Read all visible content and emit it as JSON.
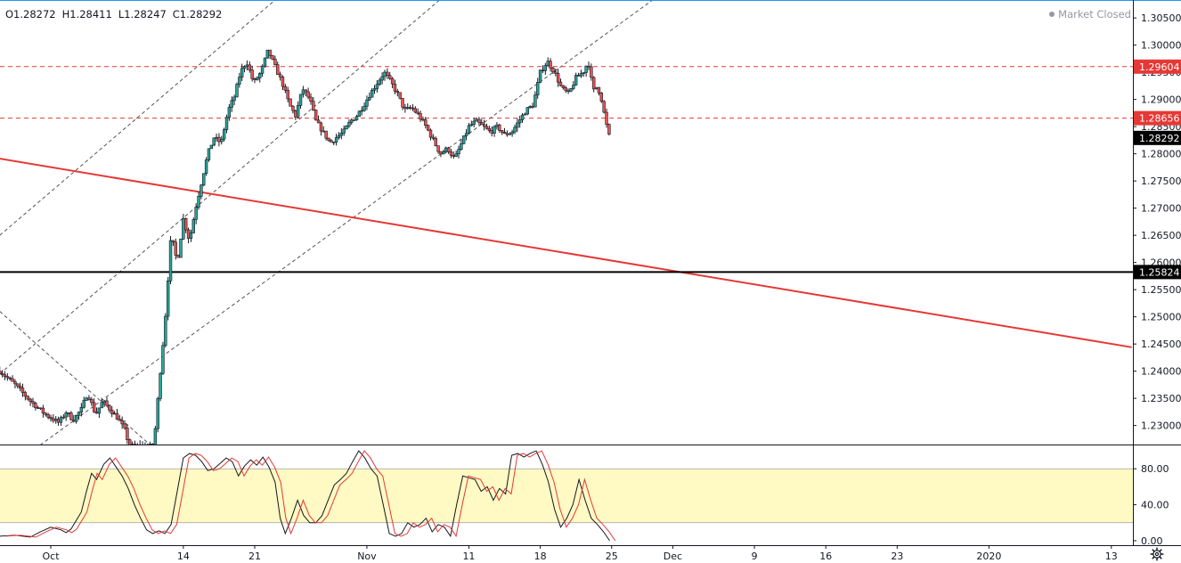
{
  "header": {
    "open": "O1.28272",
    "high": "H1.28411",
    "low": "L1.28247",
    "close": "C1.28292",
    "status": "Market Closed"
  },
  "colors": {
    "up": "#26a69a",
    "down": "#ef5350",
    "candle_border": "#131722",
    "trendline": "#e53935",
    "support": "#000000",
    "dashed_level": "#e53935",
    "channel": "#555555",
    "stoch_band": "#fff9c4",
    "stoch_k": "#131722",
    "stoch_d": "#e53935",
    "axis_text": "#131722"
  },
  "icons": {
    "settings": "gear-icon"
  },
  "chart_data": [
    {
      "type": "candlestick",
      "pane": "price",
      "ylim": [
        1.2265,
        1.3083
      ],
      "y_ticks": [
        "1.30500",
        "1.30000",
        "1.29500",
        "1.29000",
        "1.28500",
        "1.28000",
        "1.27500",
        "1.27000",
        "1.26500",
        "1.26000",
        "1.25500",
        "1.25000",
        "1.24500",
        "1.24000",
        "1.23500",
        "1.23000"
      ],
      "x_ticks": [
        {
          "label": "Oct",
          "day": 0
        },
        {
          "label": "14",
          "day": 13
        },
        {
          "label": "21",
          "day": 20
        },
        {
          "label": "Nov",
          "day": 31
        },
        {
          "label": "11",
          "day": 41
        },
        {
          "label": "18",
          "day": 48
        },
        {
          "label": "25",
          "day": 55
        },
        {
          "label": "Dec",
          "day": 61
        },
        {
          "label": "9",
          "day": 69
        },
        {
          "label": "16",
          "day": 76
        },
        {
          "label": "23",
          "day": 83
        },
        {
          "label": "2020",
          "day": 92
        },
        {
          "label": "13",
          "day": 104
        }
      ],
      "path_points": [
        [
          -5,
          1.24
        ],
        [
          -3.5,
          1.2375
        ],
        [
          -2,
          1.2345
        ],
        [
          -0.5,
          1.232
        ],
        [
          0.8,
          1.2305
        ],
        [
          1.5,
          1.2325
        ],
        [
          2.2,
          1.231
        ],
        [
          3,
          1.233
        ],
        [
          3.6,
          1.236
        ],
        [
          4.4,
          1.232
        ],
        [
          5.1,
          1.2345
        ],
        [
          5.8,
          1.233
        ],
        [
          6.5,
          1.2315
        ],
        [
          7.3,
          1.229
        ],
        [
          7.7,
          1.2262
        ],
        [
          10.1,
          1.2262
        ],
        [
          10.7,
          1.239
        ],
        [
          11.2,
          1.249
        ],
        [
          11.8,
          1.265
        ],
        [
          12.4,
          1.26
        ],
        [
          13,
          1.268
        ],
        [
          13.6,
          1.264
        ],
        [
          14.2,
          1.27
        ],
        [
          14.8,
          1.275
        ],
        [
          15.4,
          1.28
        ],
        [
          16,
          1.283
        ],
        [
          16.7,
          1.282
        ],
        [
          17.4,
          1.288
        ],
        [
          18,
          1.2905
        ],
        [
          18.6,
          1.295
        ],
        [
          19.2,
          1.297
        ],
        [
          19.9,
          1.293
        ],
        [
          20.6,
          1.295
        ],
        [
          21.3,
          1.299
        ],
        [
          22,
          1.296
        ],
        [
          22.7,
          1.293
        ],
        [
          23.4,
          1.289
        ],
        [
          24,
          1.287
        ],
        [
          24.7,
          1.292
        ],
        [
          25.4,
          1.29
        ],
        [
          26,
          1.286
        ],
        [
          26.7,
          1.284
        ],
        [
          27.4,
          1.282
        ],
        [
          28,
          1.283
        ],
        [
          28.7,
          1.284
        ],
        [
          29.4,
          1.286
        ],
        [
          30,
          1.287
        ],
        [
          30.7,
          1.289
        ],
        [
          31.3,
          1.291
        ],
        [
          32,
          1.293
        ],
        [
          32.7,
          1.295
        ],
        [
          33.4,
          1.293
        ],
        [
          34,
          1.291
        ],
        [
          34.7,
          1.288
        ],
        [
          35.4,
          1.2885
        ],
        [
          36.1,
          1.287
        ],
        [
          36.8,
          1.285
        ],
        [
          37.5,
          1.2825
        ],
        [
          38.2,
          1.28
        ],
        [
          38.9,
          1.281
        ],
        [
          39.6,
          1.279
        ],
        [
          40.3,
          1.282
        ],
        [
          41,
          1.285
        ],
        [
          41.7,
          1.286
        ],
        [
          42.4,
          1.285
        ],
        [
          43.1,
          1.284
        ],
        [
          43.8,
          1.285
        ],
        [
          44.5,
          1.2835
        ],
        [
          45.2,
          1.284
        ],
        [
          45.9,
          1.286
        ],
        [
          46.6,
          1.288
        ],
        [
          47.3,
          1.289
        ],
        [
          48,
          1.295
        ],
        [
          48.7,
          1.297
        ],
        [
          49.4,
          1.295
        ],
        [
          50.1,
          1.292
        ],
        [
          50.8,
          1.291
        ],
        [
          51.5,
          1.294
        ],
        [
          52.2,
          1.295
        ],
        [
          52.7,
          1.297
        ],
        [
          53.2,
          1.2915
        ],
        [
          53.6,
          1.2925
        ],
        [
          54,
          1.29
        ],
        [
          54.4,
          1.286
        ],
        [
          54.8,
          1.2829
        ]
      ],
      "levels": [
        {
          "price": 1.29604,
          "label": "1.29604",
          "style": "dashed",
          "color": "#e53935"
        },
        {
          "price": 1.28656,
          "label": "1.28656",
          "style": "dashed",
          "color": "#e53935"
        },
        {
          "price": 1.25824,
          "label": "1.25824",
          "style": "solid",
          "color": "#000000"
        }
      ],
      "last_price": {
        "price": 1.28292,
        "label": "1.28292"
      },
      "trendline": {
        "from": [
          -5,
          1.2791
        ],
        "to": [
          106,
          1.2444
        ],
        "color": "#e53935"
      },
      "channel_lines": [
        {
          "from": [
            -5,
            1.265
          ],
          "to": [
            48,
            1.35
          ]
        },
        {
          "from": [
            -5,
            1.2395
          ],
          "to": [
            58,
            1.34
          ]
        },
        {
          "from": [
            -5,
            1.221
          ],
          "to": [
            72,
            1.326
          ]
        },
        {
          "from": [
            -5,
            1.251
          ],
          "to": [
            10,
            1.226
          ]
        }
      ]
    },
    {
      "type": "line",
      "pane": "stochastic",
      "ylim": [
        -5,
        107
      ],
      "y_ticks": [
        "80.00",
        "40.00",
        "0.00"
      ],
      "band": [
        20,
        80
      ],
      "series": [
        {
          "points": [
            [
              -5,
              5
            ],
            [
              -3.5,
              6
            ],
            [
              -2,
              4
            ],
            [
              -1,
              10
            ],
            [
              0,
              15
            ],
            [
              1,
              12
            ],
            [
              1.5,
              9
            ],
            [
              2,
              13
            ],
            [
              3,
              32
            ],
            [
              3.5,
              55
            ],
            [
              4,
              75
            ],
            [
              4.5,
              68
            ],
            [
              5.2,
              85
            ],
            [
              5.8,
              92
            ],
            [
              6.4,
              82
            ],
            [
              7,
              72
            ],
            [
              7.6,
              58
            ],
            [
              8.2,
              40
            ],
            [
              8.8,
              25
            ],
            [
              9.4,
              12
            ],
            [
              10,
              8
            ],
            [
              10.6,
              11
            ],
            [
              11.2,
              8
            ],
            [
              11.8,
              18
            ],
            [
              12.4,
              55
            ],
            [
              13,
              92
            ],
            [
              13.6,
              97
            ],
            [
              14.2,
              95
            ],
            [
              14.8,
              88
            ],
            [
              15.4,
              78
            ],
            [
              16,
              80
            ],
            [
              16.6,
              86
            ],
            [
              17.2,
              92
            ],
            [
              17.8,
              88
            ],
            [
              18.4,
              72
            ],
            [
              19,
              83
            ],
            [
              19.6,
              90
            ],
            [
              20.2,
              84
            ],
            [
              20.8,
              93
            ],
            [
              21.4,
              82
            ],
            [
              22,
              65
            ],
            [
              22.5,
              25
            ],
            [
              23,
              8
            ],
            [
              23.6,
              25
            ],
            [
              24.2,
              45
            ],
            [
              24.8,
              28
            ],
            [
              25.4,
              20
            ],
            [
              26,
              20
            ],
            [
              26.6,
              28
            ],
            [
              27.2,
              45
            ],
            [
              27.8,
              62
            ],
            [
              28.4,
              68
            ],
            [
              29,
              75
            ],
            [
              29.6,
              88
            ],
            [
              30.2,
              100
            ],
            [
              30.8,
              92
            ],
            [
              31.4,
              80
            ],
            [
              32,
              72
            ],
            [
              32.6,
              40
            ],
            [
              33.2,
              8
            ],
            [
              33.8,
              5
            ],
            [
              34.4,
              8
            ],
            [
              35,
              20
            ],
            [
              35.6,
              15
            ],
            [
              36.2,
              18
            ],
            [
              36.8,
              25
            ],
            [
              37.4,
              10
            ],
            [
              38,
              18
            ],
            [
              38.6,
              15
            ],
            [
              39.2,
              5
            ],
            [
              39.8,
              40
            ],
            [
              40.4,
              72
            ],
            [
              41,
              70
            ],
            [
              41.6,
              68
            ],
            [
              42.2,
              55
            ],
            [
              42.8,
              60
            ],
            [
              43.4,
              45
            ],
            [
              44,
              58
            ],
            [
              44.6,
              52
            ],
            [
              45.2,
              95
            ],
            [
              45.8,
              97
            ],
            [
              46.4,
              93
            ],
            [
              47,
              97
            ],
            [
              47.6,
              100
            ],
            [
              48.2,
              85
            ],
            [
              48.8,
              65
            ],
            [
              49.4,
              35
            ],
            [
              50,
              15
            ],
            [
              50.6,
              25
            ],
            [
              51.2,
              40
            ],
            [
              51.8,
              68
            ],
            [
              52.4,
              45
            ],
            [
              53,
              25
            ],
            [
              53.6,
              18
            ],
            [
              54.2,
              10
            ],
            [
              54.8,
              0
            ]
          ]
        },
        {
          "lag": 0.55
        }
      ]
    }
  ]
}
